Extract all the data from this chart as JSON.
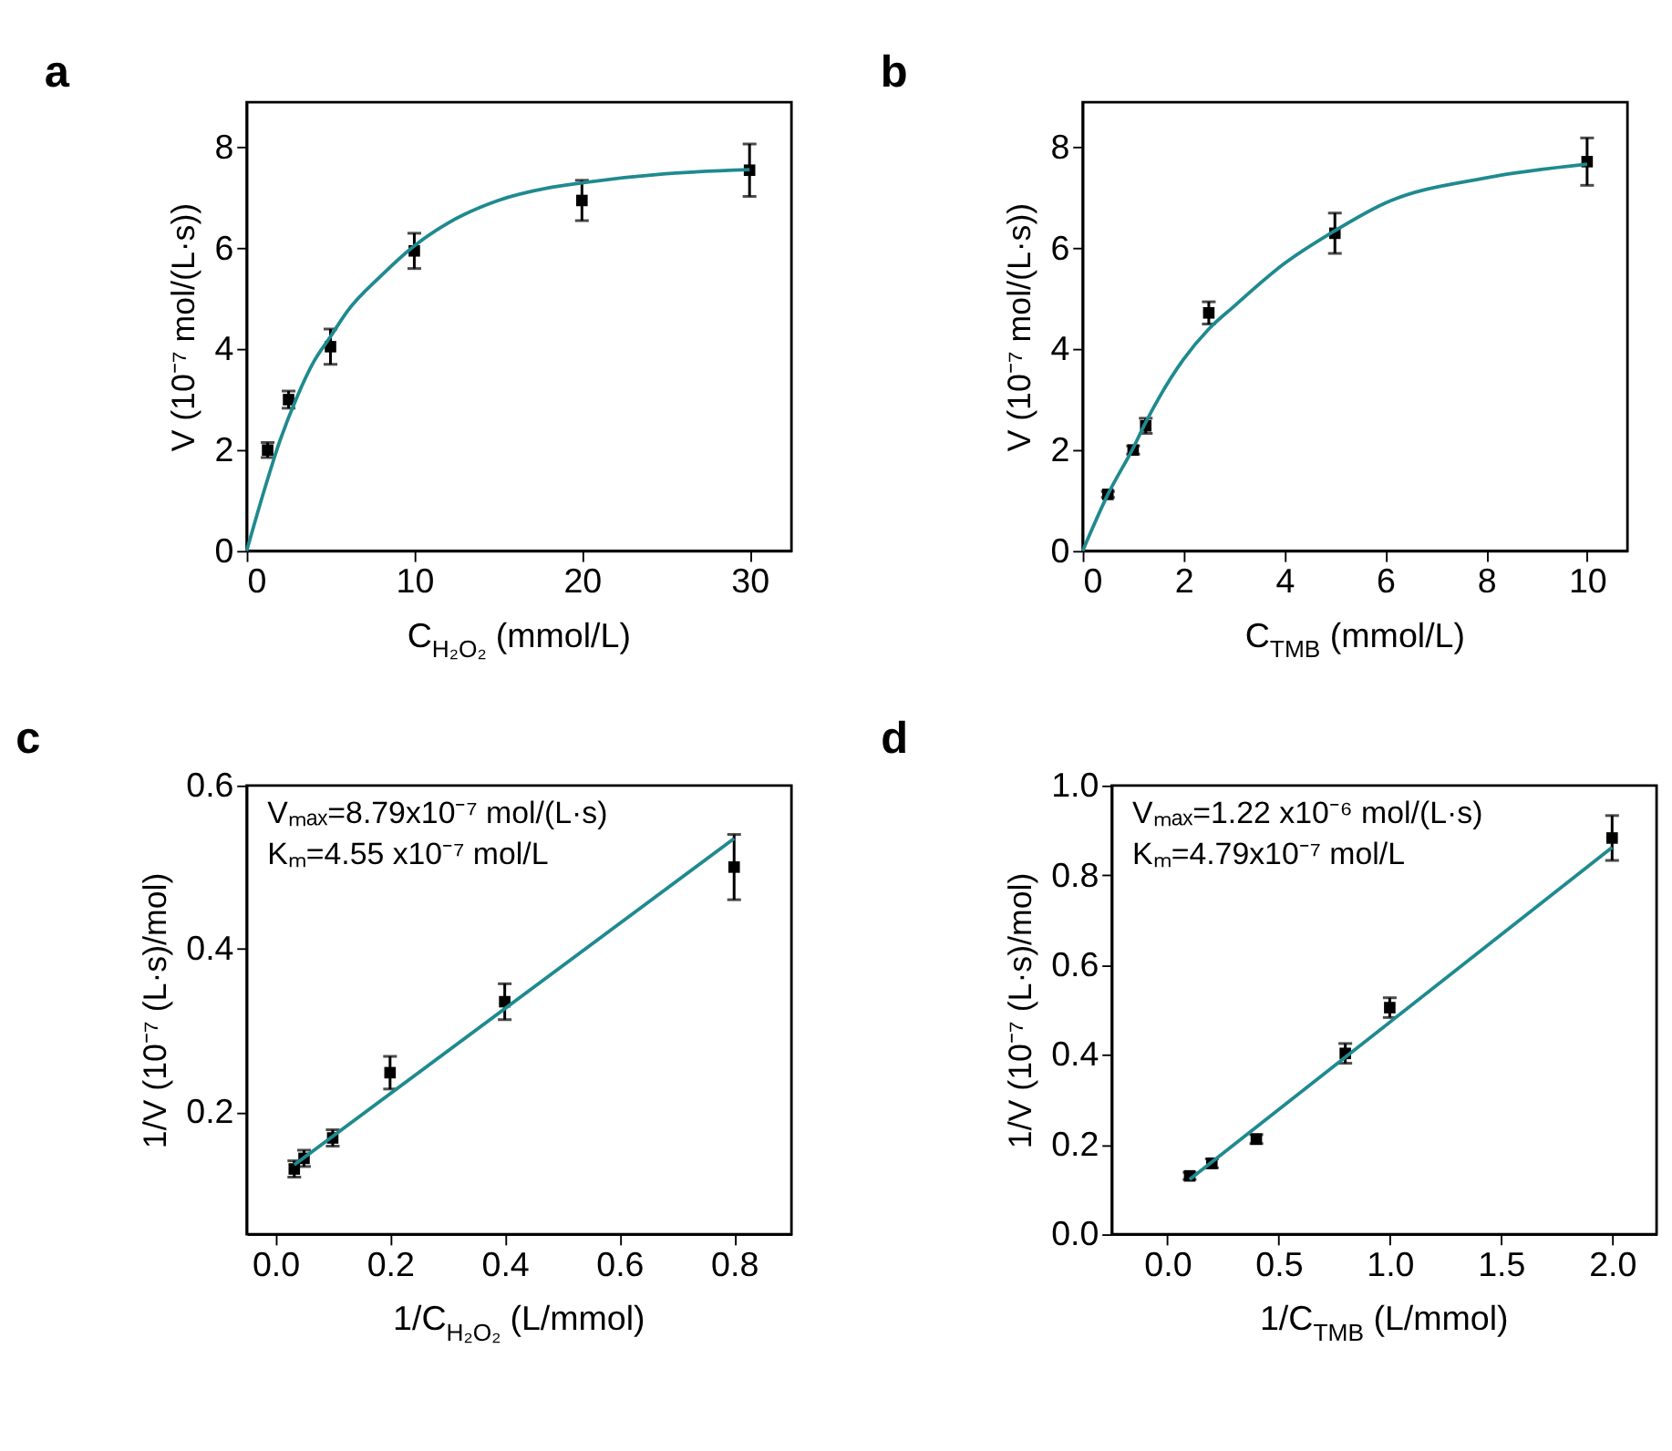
{
  "chart_data": [
    {
      "type": "scatter",
      "title": "a",
      "xlabel": "C$_{H₂O₂}$ (mmol/L)",
      "ylabel": "V (10⁻⁷ mol/(L·s))",
      "xlim": [
        0,
        32.5
      ],
      "ylim": [
        0,
        8.9
      ],
      "xticks": [
        0,
        10,
        20,
        30
      ],
      "yticks": [
        0,
        2,
        4,
        6,
        8
      ],
      "grid": false,
      "series": [
        {
          "type": "scatter",
          "marker": "square",
          "color": "#000000",
          "x": [
            1.25,
            2.5,
            5,
            10,
            20,
            30
          ],
          "values": [
            2.0,
            3.0,
            4.05,
            5.95,
            6.95,
            7.55
          ],
          "errors": [
            0.15,
            0.17,
            0.35,
            0.35,
            0.4,
            0.52
          ]
        },
        {
          "type": "line",
          "line_style": "solid",
          "color": "#1f8a8f",
          "x": [
            0,
            1,
            2,
            3,
            4,
            5,
            6,
            8,
            10,
            12,
            15,
            18,
            20,
            25,
            30
          ],
          "values": [
            0,
            1.15,
            2.2,
            3.05,
            3.75,
            4.25,
            4.75,
            5.45,
            6.05,
            6.5,
            6.95,
            7.2,
            7.3,
            7.48,
            7.56
          ]
        }
      ]
    },
    {
      "type": "scatter",
      "title": "b",
      "xlabel": "C$_{TMB}$ (mmol/L)",
      "ylabel": "V (10⁻⁷ mol/(L·s))",
      "xlim": [
        0,
        10.8
      ],
      "ylim": [
        0,
        8.9
      ],
      "xticks": [
        0,
        2,
        4,
        6,
        8,
        10
      ],
      "yticks": [
        0,
        2,
        4,
        6,
        8
      ],
      "grid": false,
      "series": [
        {
          "type": "scatter",
          "marker": "square",
          "color": "#000000",
          "x": [
            0.5,
            1,
            1.25,
            2.5,
            5,
            10
          ],
          "values": [
            1.12,
            2.0,
            2.48,
            4.72,
            6.3,
            7.72
          ],
          "errors": [
            0.06,
            0.08,
            0.15,
            0.22,
            0.4,
            0.47
          ]
        },
        {
          "type": "line",
          "line_style": "solid",
          "color": "#1f8a8f",
          "x": [
            0,
            0.5,
            1,
            1.25,
            2,
            2.5,
            3,
            4,
            5,
            6,
            8,
            10
          ],
          "values": [
            0,
            1.12,
            2.04,
            2.55,
            3.8,
            4.4,
            4.85,
            5.7,
            6.35,
            6.9,
            7.4,
            7.67
          ]
        }
      ]
    },
    {
      "type": "scatter",
      "title": "c",
      "xlabel": "1/C$_{H₂O₂}$ (L/mmol)",
      "ylabel": "1/V (10⁻⁷ (L·s)/mol)",
      "xlim": [
        -0.05,
        0.9
      ],
      "ylim": [
        0.05,
        0.6
      ],
      "xticks": [
        {
          "value": 0,
          "label": "0.0"
        },
        0.2,
        0.4,
        0.6,
        0.8
      ],
      "yticks": [
        0.2,
        0.4,
        0.6
      ],
      "grid": false,
      "annotations": [
        "Vₘₐₓ=8.79x10⁻⁷ mol/(L·s)",
        "Kₘ=4.55 x10⁻⁷ mol/L"
      ],
      "series": [
        {
          "type": "scatter",
          "marker": "square",
          "color": "#000000",
          "x": [
            0.033,
            0.05,
            0.1,
            0.2,
            0.4,
            0.8
          ],
          "values": [
            0.13,
            0.143,
            0.168,
            0.248,
            0.335,
            0.5
          ],
          "errors": [
            0.01,
            0.01,
            0.01,
            0.02,
            0.022,
            0.04
          ]
        },
        {
          "type": "line",
          "line_style": "solid",
          "color": "#1f8a8f",
          "x": [
            0.033,
            0.8
          ],
          "values": [
            0.135,
            0.535
          ]
        }
      ]
    },
    {
      "type": "scatter",
      "title": "d",
      "xlabel": "1/C$_{TMB}$ (L/mmol)",
      "ylabel": "1/V (10⁻⁷ (L·s)/mol)",
      "xlim": [
        -0.25,
        2.2
      ],
      "ylim": [
        0.0,
        1.0
      ],
      "xticks": [
        {
          "value": 0,
          "label": "0.0"
        },
        0.5,
        {
          "value": 1,
          "label": "1.0"
        },
        1.5,
        {
          "value": 2,
          "label": "2.0"
        }
      ],
      "yticks": [
        {
          "value": 0,
          "label": "0.0"
        },
        0.2,
        0.4,
        0.6,
        0.8,
        {
          "value": 1,
          "label": "1.0"
        }
      ],
      "grid": false,
      "annotations": [
        "Vₘₐₓ=1.22 x10⁻⁶ mol/(L·s)",
        "Kₘ=4.79x10⁻⁷ mol/L"
      ],
      "series": [
        {
          "type": "scatter",
          "marker": "square",
          "color": "#000000",
          "x": [
            0.1,
            0.2,
            0.4,
            0.8,
            1.0,
            2.0
          ],
          "values": [
            0.13,
            0.158,
            0.212,
            0.403,
            0.505,
            0.883
          ],
          "errors": [
            0.008,
            0.01,
            0.01,
            0.022,
            0.022,
            0.05
          ]
        },
        {
          "type": "line",
          "line_style": "solid",
          "color": "#1f8a8f",
          "x": [
            0.1,
            2.0
          ],
          "values": [
            0.122,
            0.862
          ]
        }
      ]
    }
  ]
}
